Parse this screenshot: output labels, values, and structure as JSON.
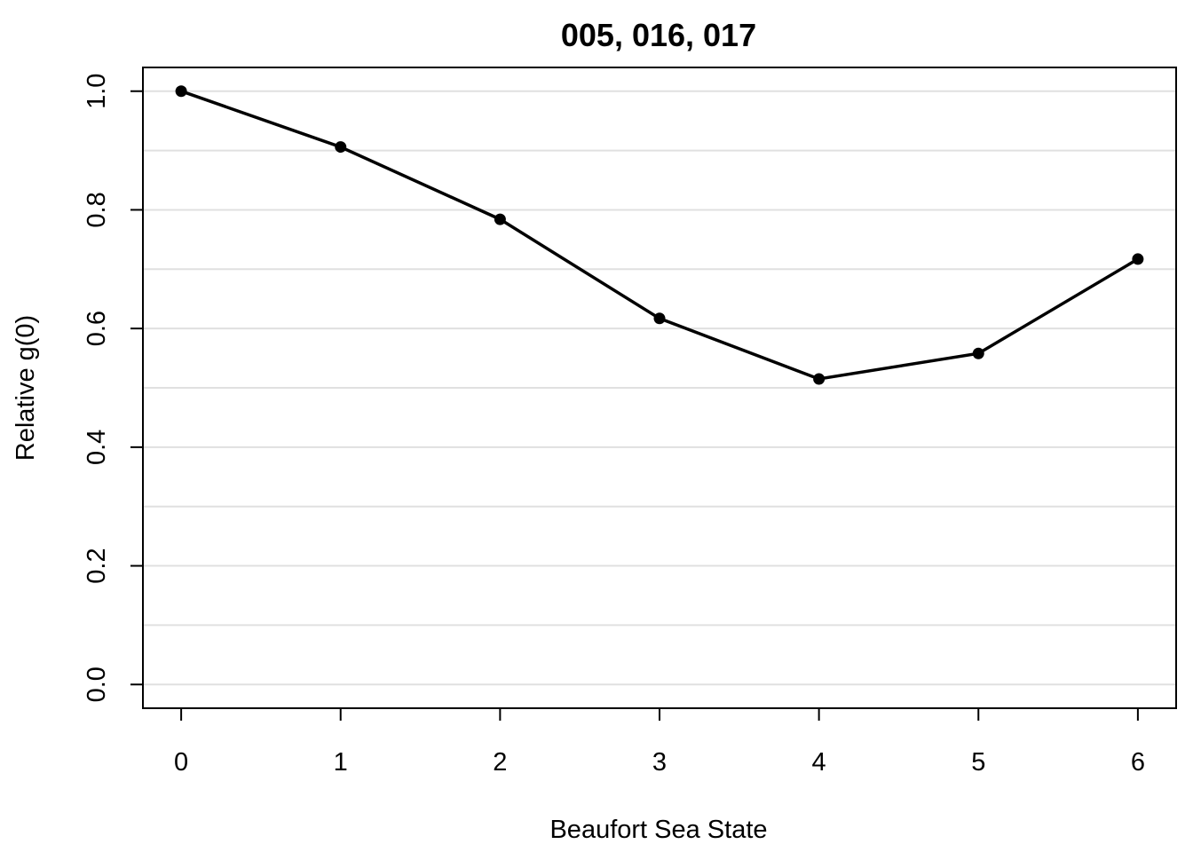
{
  "chart_data": {
    "type": "line",
    "title": "005, 016, 017",
    "xlabel": "Beaufort Sea State",
    "ylabel": "Relative g(0)",
    "x": [
      0,
      1,
      2,
      3,
      4,
      5,
      6
    ],
    "values": [
      1.0,
      0.906,
      0.784,
      0.617,
      0.515,
      0.558,
      0.717
    ],
    "xlim": [
      -0.24,
      6.24
    ],
    "ylim": [
      -0.04,
      1.04
    ],
    "xticks": [
      "0",
      "1",
      "2",
      "3",
      "4",
      "5",
      "6"
    ],
    "yticks": [
      "0.0",
      "0.2",
      "0.4",
      "0.6",
      "0.8",
      "1.0"
    ],
    "ygrid": [
      0.0,
      0.1,
      0.2,
      0.3,
      0.4,
      0.5,
      0.6,
      0.7,
      0.8,
      0.9,
      1.0
    ],
    "grid": "horizontal",
    "colors": {
      "line": "#000000",
      "grid": "#e0e0e0"
    }
  }
}
